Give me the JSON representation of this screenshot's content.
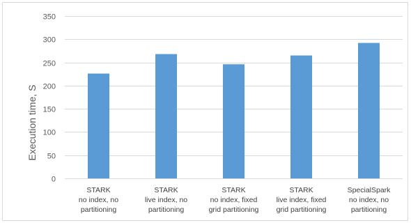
{
  "chart_data": {
    "type": "bar",
    "categories": [
      [
        "STARK",
        "no index, no",
        "partitioning"
      ],
      [
        "STARK",
        "live index, no",
        "partitioning"
      ],
      [
        "STARK",
        "no index, fixed",
        "grid partitioning"
      ],
      [
        "STARK",
        "live index, fixed",
        "grid partitioning"
      ],
      [
        "SpecialSpark",
        "no index, no",
        "partitioning"
      ]
    ],
    "values": [
      226,
      268,
      246,
      265,
      292
    ],
    "title": "",
    "xlabel": "",
    "ylabel": "Execution time, S",
    "ylim": [
      0,
      350
    ],
    "yticks": [
      0,
      50,
      100,
      150,
      200,
      250,
      300,
      350
    ],
    "grid": true,
    "legend": "none",
    "bar_color": "#5b9bd5",
    "grid_color": "#d9d9d9"
  }
}
